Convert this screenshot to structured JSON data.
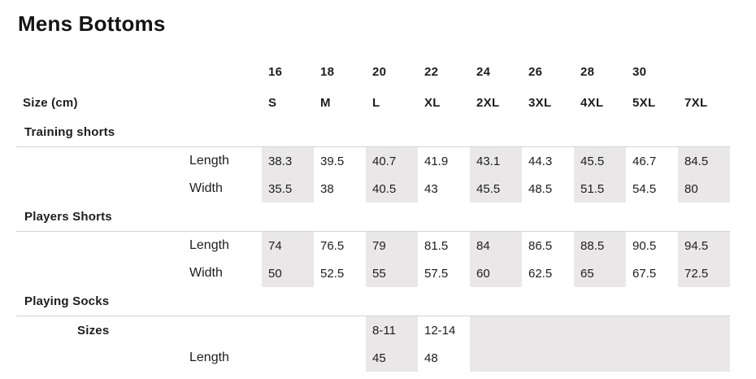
{
  "page": {
    "title": "Mens Bottoms"
  },
  "table": {
    "header": {
      "numeric_sizes": [
        "16",
        "18",
        "20",
        "22",
        "24",
        "26",
        "28",
        "30",
        ""
      ],
      "label": "Size (cm)",
      "letter_sizes": [
        "S",
        "M",
        "L",
        "XL",
        "2XL",
        "3XL",
        "4XL",
        "5XL",
        "7XL"
      ]
    },
    "sections": [
      {
        "title": "Training shorts",
        "blank_leading_cols": 0,
        "merged_trailing_cols": 0,
        "rows": [
          {
            "label": "Length",
            "bold_label": false,
            "values": [
              "38.3",
              "39.5",
              "40.7",
              "41.9",
              "43.1",
              "44.3",
              "45.5",
              "46.7",
              "84.5"
            ]
          },
          {
            "label": "Width",
            "bold_label": false,
            "values": [
              "35.5",
              "38",
              "40.5",
              "43",
              "45.5",
              "48.5",
              "51.5",
              "54.5",
              "80"
            ]
          }
        ]
      },
      {
        "title": "Players Shorts",
        "blank_leading_cols": 0,
        "merged_trailing_cols": 0,
        "rows": [
          {
            "label": "Length",
            "bold_label": false,
            "values": [
              "74",
              "76.5",
              "79",
              "81.5",
              "84",
              "86.5",
              "88.5",
              "90.5",
              "94.5"
            ]
          },
          {
            "label": "Width",
            "bold_label": false,
            "values": [
              "50",
              "52.5",
              "55",
              "57.5",
              "60",
              "62.5",
              "65",
              "67.5",
              "72.5"
            ]
          }
        ]
      },
      {
        "title": "Playing Socks",
        "blank_leading_cols": 2,
        "merged_trailing_cols": 5,
        "rows": [
          {
            "label": "Sizes",
            "bold_label": true,
            "values": [
              "",
              "",
              "8-11",
              "12-14",
              ""
            ]
          },
          {
            "label": "Length",
            "bold_label": false,
            "values": [
              "",
              "",
              "45",
              "48",
              ""
            ]
          }
        ]
      }
    ],
    "colors": {
      "cell_shade": "#e9e7e7",
      "divider_line": "#d4d1d1",
      "text": "#1d1d1d"
    }
  }
}
